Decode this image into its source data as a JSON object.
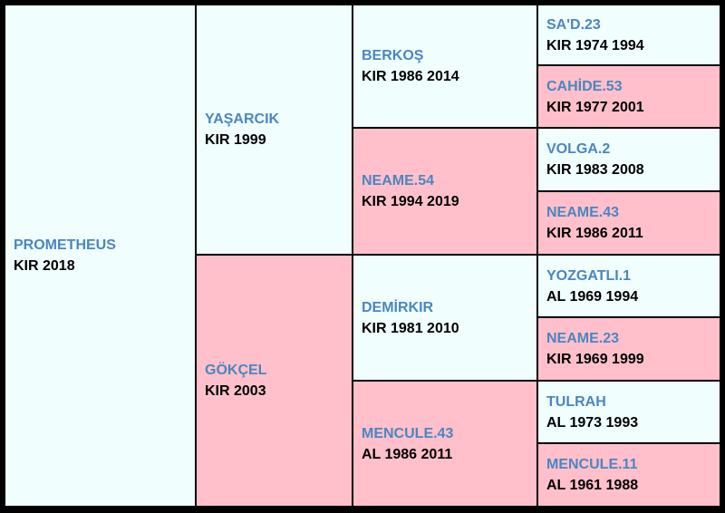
{
  "subject": {
    "name": "PROMETHEUS",
    "info": "KIR 2018"
  },
  "parents": [
    {
      "name": "YAŞARCIK",
      "info": "KIR 1999"
    },
    {
      "name": "GÖKÇEL",
      "info": "KIR 2003"
    }
  ],
  "grandparents": [
    {
      "name": "BERKOŞ",
      "info": "KIR 1986 2014"
    },
    {
      "name": "NEAME.54",
      "info": "KIR 1994 2019"
    },
    {
      "name": "DEMİRKIR",
      "info": "KIR 1981 2010"
    },
    {
      "name": "MENCULE.43",
      "info": "AL 1986 2011"
    }
  ],
  "great_grandparents": [
    {
      "name": "SA'D.23",
      "info": "KIR 1974 1994"
    },
    {
      "name": "CAHİDE.53",
      "info": "KIR 1977 2001"
    },
    {
      "name": "VOLGA.2",
      "info": "KIR 1983 2008"
    },
    {
      "name": "NEAME.43",
      "info": "KIR 1986 2011"
    },
    {
      "name": "YOZGATLI.1",
      "info": "AL 1969 1994"
    },
    {
      "name": "NEAME.23",
      "info": "KIR 1969 1999"
    },
    {
      "name": "TULRAH",
      "info": "AL 1973 1993"
    },
    {
      "name": "MENCULE.11",
      "info": "AL 1961 1988"
    }
  ],
  "colors": {
    "male_background": "#f0fefe",
    "female_background": "#ffc0cb",
    "name_text": "#4a86c0",
    "info_text": "#000000",
    "border": "#000000"
  }
}
